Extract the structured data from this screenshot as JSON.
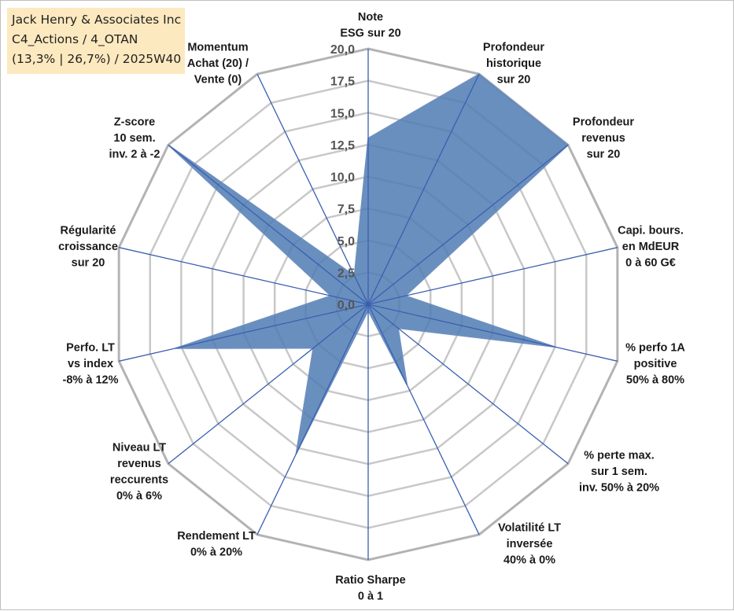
{
  "info_box": {
    "line1": "Jack Henry & Associates Inc",
    "line2": "C4_Actions / 4_OTAN",
    "line3": "(13,3% | 26,7%) / 2025W40"
  },
  "colors": {
    "fill": "#4f7bb4",
    "edge": "#6f8fbf",
    "spoke": "#3a5fb0",
    "ring": "#c8c8c8",
    "outer_ring": "#b3b3b3",
    "info_bg": "#fde9bf"
  },
  "chart_data": {
    "type": "radar",
    "title": "",
    "rlim": [
      0,
      20
    ],
    "grid": true,
    "legend": "none",
    "tick_labels": [
      "0,0",
      "2,5",
      "5,0",
      "7,5",
      "10,0",
      "12,5",
      "15,0",
      "17,5",
      "20,0"
    ],
    "axes": [
      {
        "lines": [
          "Note",
          "ESG sur 20"
        ]
      },
      {
        "lines": [
          "Profondeur",
          "historique",
          "sur 20"
        ]
      },
      {
        "lines": [
          "Profondeur",
          "revenus",
          "sur 20"
        ]
      },
      {
        "lines": [
          "Capi. bours.",
          "en MdEUR",
          "0 à 60 G€"
        ]
      },
      {
        "lines": [
          "% perfo 1A",
          "positive",
          "50% à 80%"
        ]
      },
      {
        "lines": [
          "% perte max.",
          "sur 1 sem.",
          "inv. 50% à 20%"
        ]
      },
      {
        "lines": [
          "Volatilité LT",
          "inversée",
          "40% à 0%"
        ]
      },
      {
        "lines": [
          "Ratio Sharpe",
          "0 à 1"
        ]
      },
      {
        "lines": [
          "Rendement LT",
          "0% à 20%"
        ]
      },
      {
        "lines": [
          "Niveau LT",
          "revenus",
          "reccurents",
          "0% à 6%"
        ]
      },
      {
        "lines": [
          "Perfo. LT",
          "vs index",
          "-8% à 12%"
        ]
      },
      {
        "lines": [
          "Régularité",
          "croissance",
          "sur 20"
        ]
      },
      {
        "lines": [
          "Z-score",
          "10 sem.",
          "inv. 2 à -2"
        ]
      },
      {
        "lines": [
          "Momentum",
          "Achat (20) /",
          "Vente (0)"
        ]
      }
    ],
    "series": [
      {
        "values": [
          13.0,
          20.0,
          20.0,
          3.0,
          15.0,
          3.0,
          7.0,
          0.5,
          13.0,
          5.5,
          15.5,
          3.0,
          20.0,
          2.5
        ]
      }
    ]
  }
}
